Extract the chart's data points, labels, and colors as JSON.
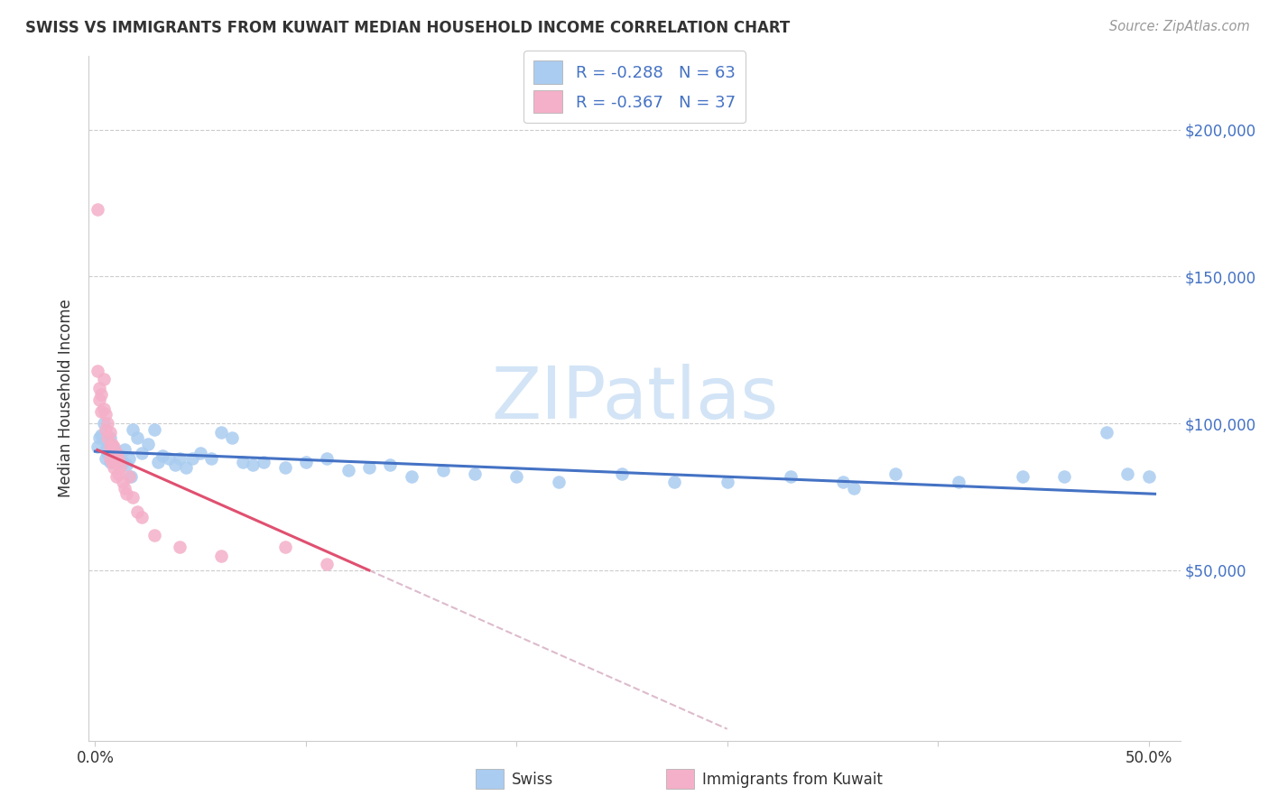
{
  "title": "SWISS VS IMMIGRANTS FROM KUWAIT MEDIAN HOUSEHOLD INCOME CORRELATION CHART",
  "source": "Source: ZipAtlas.com",
  "ylabel": "Median Household Income",
  "xlim": [
    -0.003,
    0.515
  ],
  "ylim": [
    -8000,
    225000
  ],
  "ytick_positions": [
    50000,
    100000,
    150000,
    200000
  ],
  "xtick_positions": [
    0.0,
    0.1,
    0.2,
    0.3,
    0.4,
    0.5
  ],
  "legend_swiss_r": "-0.288",
  "legend_swiss_n": "63",
  "legend_kuwait_r": "-0.367",
  "legend_kuwait_n": "37",
  "swiss_color": "#aaccf0",
  "kuwait_color": "#f4b0c8",
  "swiss_line_color": "#4472c4",
  "kuwait_line_color": "#e05070",
  "kuwait_dash_color": "#ddbbcc",
  "grid_color": "#cccccc",
  "spine_color": "#cccccc",
  "watermark_color": "#cce0f5",
  "watermark_text": "ZIPatlas",
  "swiss_x": [
    0.001,
    0.002,
    0.003,
    0.004,
    0.005,
    0.005,
    0.006,
    0.006,
    0.007,
    0.007,
    0.008,
    0.009,
    0.01,
    0.011,
    0.012,
    0.013,
    0.014,
    0.015,
    0.016,
    0.017,
    0.018,
    0.02,
    0.022,
    0.025,
    0.028,
    0.03,
    0.032,
    0.035,
    0.038,
    0.04,
    0.043,
    0.046,
    0.05,
    0.055,
    0.06,
    0.065,
    0.07,
    0.075,
    0.08,
    0.09,
    0.1,
    0.11,
    0.12,
    0.13,
    0.14,
    0.15,
    0.165,
    0.18,
    0.2,
    0.22,
    0.25,
    0.275,
    0.3,
    0.33,
    0.355,
    0.38,
    0.41,
    0.44,
    0.46,
    0.36,
    0.48,
    0.49,
    0.5
  ],
  "swiss_y": [
    92000,
    95000,
    96000,
    100000,
    91000,
    88000,
    93000,
    90000,
    95000,
    87000,
    92000,
    91000,
    90000,
    88000,
    89000,
    87000,
    91000,
    86000,
    88000,
    82000,
    98000,
    95000,
    90000,
    93000,
    98000,
    87000,
    89000,
    88000,
    86000,
    88000,
    85000,
    88000,
    90000,
    88000,
    97000,
    95000,
    87000,
    86000,
    87000,
    85000,
    87000,
    88000,
    84000,
    85000,
    86000,
    82000,
    84000,
    83000,
    82000,
    80000,
    83000,
    80000,
    80000,
    82000,
    80000,
    83000,
    80000,
    82000,
    82000,
    78000,
    97000,
    83000,
    82000
  ],
  "kuwait_x": [
    0.001,
    0.001,
    0.002,
    0.002,
    0.003,
    0.003,
    0.004,
    0.004,
    0.005,
    0.005,
    0.006,
    0.006,
    0.007,
    0.007,
    0.007,
    0.008,
    0.008,
    0.009,
    0.009,
    0.01,
    0.01,
    0.01,
    0.011,
    0.011,
    0.012,
    0.013,
    0.014,
    0.015,
    0.016,
    0.018,
    0.02,
    0.022,
    0.028,
    0.04,
    0.06,
    0.09,
    0.11
  ],
  "kuwait_y": [
    173000,
    118000,
    112000,
    108000,
    110000,
    104000,
    115000,
    105000,
    103000,
    98000,
    100000,
    95000,
    97000,
    92000,
    88000,
    93000,
    87000,
    92000,
    85000,
    90000,
    87000,
    82000,
    88000,
    83000,
    85000,
    80000,
    78000,
    76000,
    82000,
    75000,
    70000,
    68000,
    62000,
    58000,
    55000,
    58000,
    52000
  ]
}
